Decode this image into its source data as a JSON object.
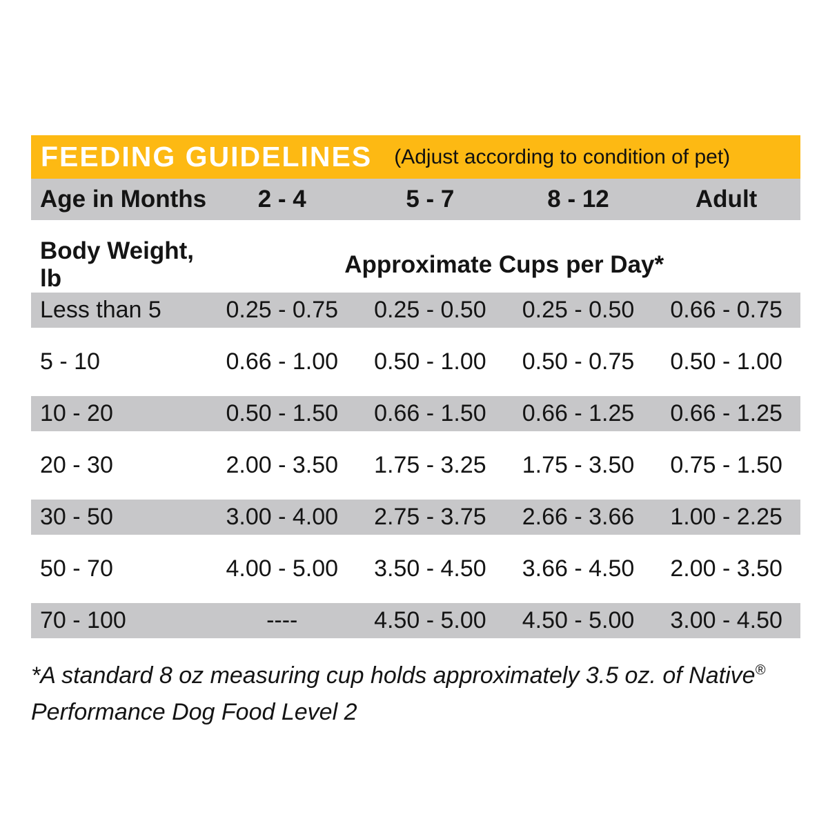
{
  "header": {
    "title": "FEEDING GUIDELINES",
    "subtitle": "(Adjust according to condition of pet)"
  },
  "columns": {
    "age_label": "Age in Months",
    "ages": [
      "2 - 4",
      "5 - 7",
      "8 - 12",
      "Adult"
    ]
  },
  "subheader": {
    "body_weight_label": "Body Weight, lb",
    "cups_label": "Approximate Cups per Day*"
  },
  "rows": [
    {
      "weight": "Less than 5",
      "values": [
        "0.25 - 0.75",
        "0.25 - 0.50",
        "0.25 - 0.50",
        "0.66 - 0.75"
      ]
    },
    {
      "weight": "5 - 10",
      "values": [
        "0.66 - 1.00",
        "0.50 - 1.00",
        "0.50 - 0.75",
        "0.50 - 1.00"
      ]
    },
    {
      "weight": "10 - 20",
      "values": [
        "0.50 - 1.50",
        "0.66 - 1.50",
        "0.66 - 1.25",
        "0.66 - 1.25"
      ]
    },
    {
      "weight": "20 - 30",
      "values": [
        "2.00 - 3.50",
        "1.75 - 3.25",
        "1.75 - 3.50",
        "0.75 - 1.50"
      ]
    },
    {
      "weight": "30 - 50",
      "values": [
        "3.00 - 4.00",
        "2.75 - 3.75",
        "2.66 - 3.66",
        "1.00 - 2.25"
      ]
    },
    {
      "weight": "50 - 70",
      "values": [
        "4.00 - 5.00",
        "3.50 - 4.50",
        "3.66 - 4.50",
        "2.00 - 3.50"
      ]
    },
    {
      "weight": "70 - 100",
      "values": [
        "----",
        "4.50 - 5.00",
        "4.50 - 5.00",
        "3.00 - 4.50"
      ]
    }
  ],
  "footnote": {
    "line1": "*A standard 8 oz measuring cup holds approximately 3.5 oz. of Native",
    "registered_mark": "®",
    "line2": "Performance Dog Food Level 2"
  },
  "colors": {
    "accent_yellow": "#FDB913",
    "stripe_gray": "#C7C7C9",
    "text": "#141414"
  }
}
